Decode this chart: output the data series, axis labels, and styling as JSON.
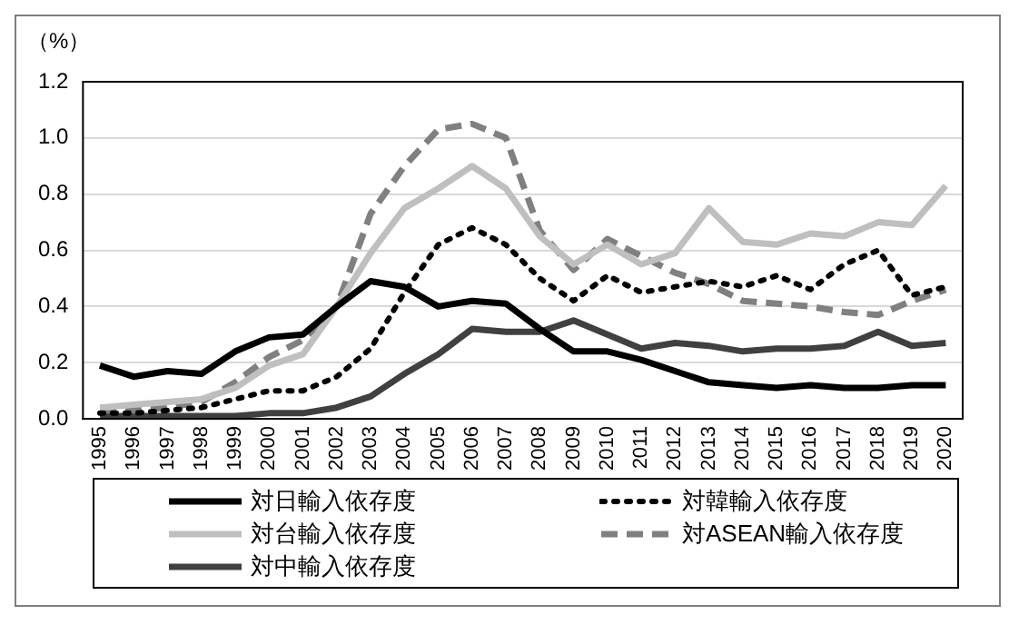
{
  "chart_data": {
    "type": "line",
    "ylabel": "（%）",
    "categories": [
      "1995",
      "1996",
      "1997",
      "1998",
      "1999",
      "2000",
      "2001",
      "2002",
      "2003",
      "2004",
      "2005",
      "2006",
      "2007",
      "2008",
      "2009",
      "2010",
      "2011",
      "2012",
      "2013",
      "2014",
      "2015",
      "2016",
      "2017",
      "2018",
      "2019",
      "2020"
    ],
    "ylim": [
      0,
      1.2
    ],
    "yticks": [
      {
        "value": 0,
        "label": "0.0"
      },
      {
        "value": 0.2,
        "label": "0.2"
      },
      {
        "value": 0.4,
        "label": "0.4"
      },
      {
        "value": 0.6,
        "label": "0.6"
      },
      {
        "value": 0.8,
        "label": "0.8"
      },
      {
        "value": 1.0,
        "label": "1.0"
      },
      {
        "value": 1.2,
        "label": "1.2"
      }
    ],
    "grid": "y",
    "legend": "bottom",
    "marker": "none",
    "series": [
      {
        "name": "対日輸入依存度",
        "color": "#000000",
        "line_style": "solid",
        "values": [
          0.19,
          0.15,
          0.17,
          0.16,
          0.24,
          0.29,
          0.3,
          0.4,
          0.49,
          0.47,
          0.4,
          0.42,
          0.41,
          0.32,
          0.24,
          0.24,
          0.21,
          0.17,
          0.13,
          0.12,
          0.11,
          0.12,
          0.11,
          0.11,
          0.12,
          0.12
        ]
      },
      {
        "name": "対韓輸入依存度",
        "color": "#000000",
        "line_style": "dotted",
        "values": [
          0.02,
          0.02,
          0.03,
          0.04,
          0.07,
          0.1,
          0.1,
          0.15,
          0.25,
          0.45,
          0.62,
          0.68,
          0.62,
          0.5,
          0.42,
          0.51,
          0.45,
          0.47,
          0.49,
          0.47,
          0.51,
          0.46,
          0.55,
          0.6,
          0.44,
          0.47
        ]
      },
      {
        "name": "対台輸入依存度",
        "color": "#bfbfbf",
        "line_style": "solid",
        "values": [
          0.04,
          0.05,
          0.06,
          0.07,
          0.11,
          0.19,
          0.23,
          0.4,
          0.59,
          0.75,
          0.82,
          0.9,
          0.82,
          0.65,
          0.55,
          0.62,
          0.55,
          0.59,
          0.75,
          0.63,
          0.62,
          0.66,
          0.65,
          0.7,
          0.69,
          0.83
        ]
      },
      {
        "name": "対ASEAN輸入依存度",
        "color": "#808080",
        "line_style": "dashed",
        "values": [
          0.03,
          0.03,
          0.04,
          0.06,
          0.13,
          0.22,
          0.28,
          0.4,
          0.73,
          0.9,
          1.03,
          1.05,
          1.0,
          0.67,
          0.53,
          0.64,
          0.58,
          0.52,
          0.48,
          0.42,
          0.41,
          0.4,
          0.38,
          0.37,
          0.42,
          0.46
        ]
      },
      {
        "name": "対中輸入依存度",
        "color": "#404040",
        "line_style": "solid",
        "values": [
          0.01,
          0.01,
          0.01,
          0.01,
          0.01,
          0.02,
          0.02,
          0.04,
          0.08,
          0.16,
          0.23,
          0.32,
          0.31,
          0.31,
          0.35,
          0.3,
          0.25,
          0.27,
          0.26,
          0.24,
          0.25,
          0.25,
          0.26,
          0.31,
          0.26,
          0.27
        ]
      }
    ]
  }
}
